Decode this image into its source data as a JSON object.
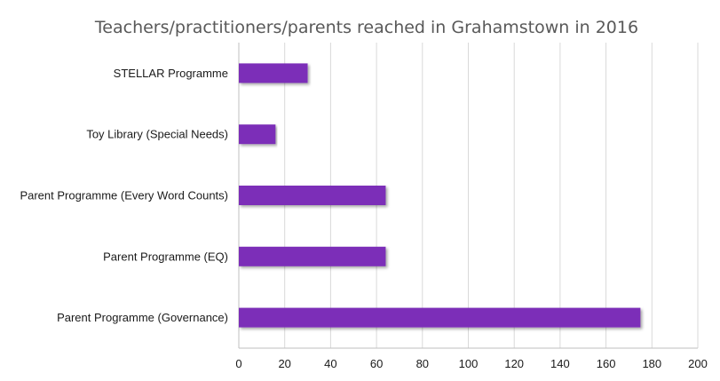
{
  "chart_data": {
    "type": "bar",
    "orientation": "horizontal",
    "title": "Teachers/practitioners/parents reached in Grahamstown in 2016",
    "xlabel": "",
    "ylabel": "",
    "categories": [
      "STELLAR Programme",
      "Toy Library (Special Needs)",
      "Parent Programme (Every Word Counts)",
      "Parent Programme (EQ)",
      "Parent Programme (Governance)"
    ],
    "values": [
      30,
      16,
      64,
      64,
      175
    ],
    "xlim": [
      0,
      200
    ],
    "x_ticks": [
      "0",
      "20",
      "40",
      "60",
      "80",
      "100",
      "120",
      "140",
      "160",
      "180",
      "200"
    ],
    "grid": "vertical",
    "legend": "none",
    "bar_color": "#7b2fb8"
  }
}
